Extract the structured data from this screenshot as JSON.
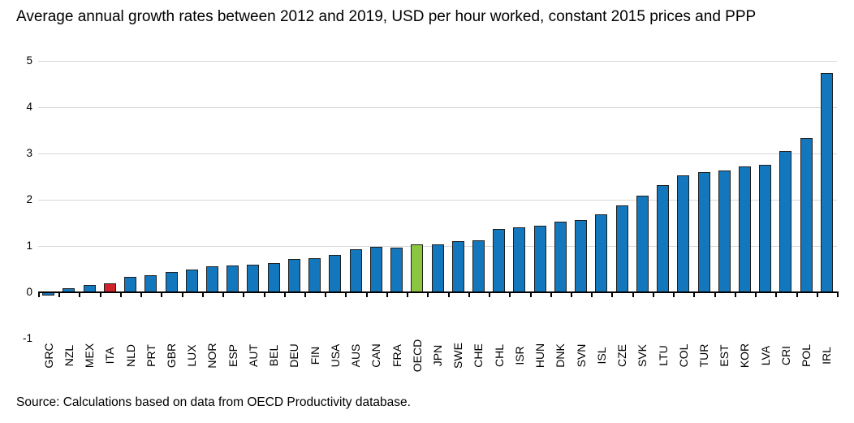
{
  "chart_data": {
    "type": "bar",
    "title": "Average annual growth rates between 2012 and 2019, USD per hour worked, constant 2015 prices and PPP",
    "source_note": "Source: Calculations based on data from OECD Productivity database.",
    "categories": [
      "GRC",
      "NZL",
      "MEX",
      "ITA",
      "NLD",
      "PRT",
      "GBR",
      "LUX",
      "NOR",
      "ESP",
      "AUT",
      "BEL",
      "DEU",
      "FIN",
      "USA",
      "AUS",
      "CAN",
      "FRA",
      "OECD",
      "JPN",
      "SWE",
      "CHE",
      "CHL",
      "ISR",
      "HUN",
      "DNK",
      "SVN",
      "ISL",
      "CZE",
      "SVK",
      "LTU",
      "COL",
      "TUR",
      "EST",
      "KOR",
      "LVA",
      "CRI",
      "POL",
      "IRL"
    ],
    "values": [
      -0.03,
      0.09,
      0.16,
      0.19,
      0.34,
      0.37,
      0.44,
      0.49,
      0.57,
      0.58,
      0.59,
      0.63,
      0.72,
      0.74,
      0.8,
      0.93,
      0.98,
      0.97,
      1.04,
      1.03,
      1.11,
      1.13,
      1.37,
      1.4,
      1.44,
      1.52,
      1.56,
      1.68,
      1.88,
      2.09,
      2.31,
      2.52,
      2.59,
      2.64,
      2.72,
      2.76,
      3.06,
      3.33,
      4.74
    ],
    "default_bar_color": "#1377bd",
    "highlight_colors": {
      "ITA": "#d2232a",
      "OECD": "#8cc53f"
    },
    "bar_border_color": "#1f1f1f",
    "gridline_color": "#d9d9d9",
    "axis_color": "#000000",
    "ylim": [
      -1,
      5
    ],
    "yticks": [
      -1,
      0,
      1,
      2,
      3,
      4,
      5
    ],
    "grid": "horizontal",
    "legend": "none",
    "xlabel": "",
    "ylabel": ""
  }
}
